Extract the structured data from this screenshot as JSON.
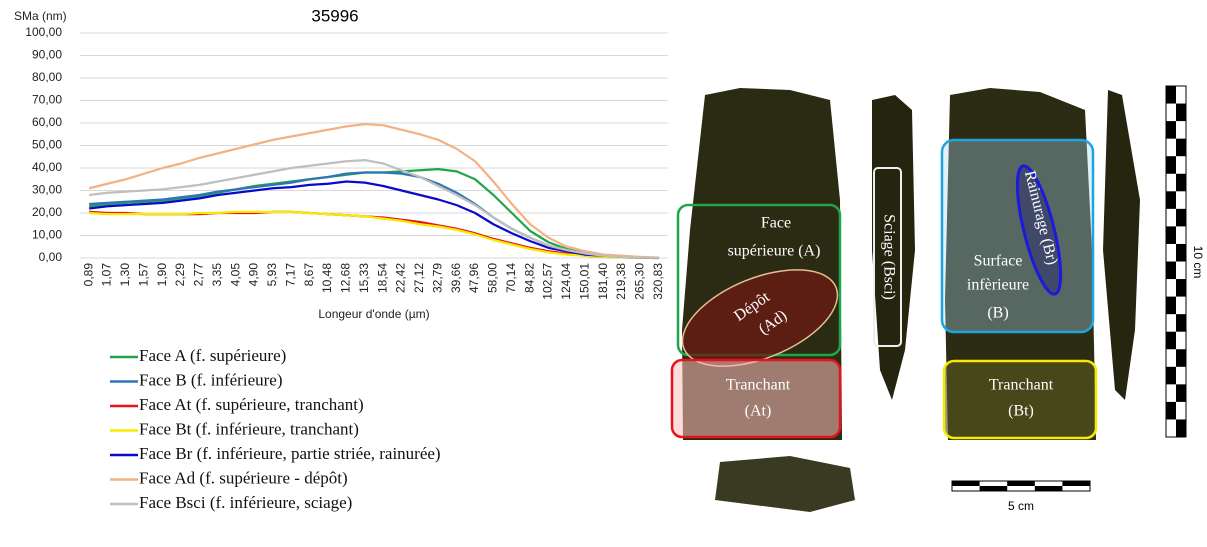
{
  "chart_data": {
    "type": "line",
    "title": "35996",
    "y_label": "SMa (nm)",
    "x_label": "Longeur d'onde (µm)",
    "categories": [
      "0,89",
      "1,07",
      "1,30",
      "1,57",
      "1,90",
      "2,29",
      "2,77",
      "3,35",
      "4,05",
      "4,90",
      "5,93",
      "7,17",
      "8,67",
      "10,48",
      "12,68",
      "15,33",
      "18,54",
      "22,42",
      "27,12",
      "32,79",
      "39,66",
      "47,96",
      "58,00",
      "70,14",
      "84,82",
      "102,57",
      "124,04",
      "150,01",
      "181,40",
      "219,38",
      "265,30",
      "320,83"
    ],
    "ylim": [
      0,
      100
    ],
    "yticks": [
      {
        "value": 0,
        "label": "0,00"
      },
      {
        "value": 10,
        "label": "10,00"
      },
      {
        "value": 20,
        "label": "20,00"
      },
      {
        "value": 30,
        "label": "30,00"
      },
      {
        "value": 40,
        "label": "40,00"
      },
      {
        "value": 50,
        "label": "50,00"
      },
      {
        "value": 60,
        "label": "60,00"
      },
      {
        "value": 70,
        "label": "70,00"
      },
      {
        "value": 80,
        "label": "80,00"
      },
      {
        "value": 90,
        "label": "90,00"
      },
      {
        "value": 100,
        "label": "100,00"
      }
    ],
    "grid": true,
    "series": [
      {
        "name": "Face A (f. supérieure)",
        "color": "#1fa64a",
        "values": [
          23,
          24,
          24.5,
          25,
          25.5,
          26.5,
          27.5,
          29,
          30.5,
          32,
          33,
          34,
          35,
          36,
          37,
          38,
          38,
          38.5,
          39,
          39.5,
          38.5,
          35,
          28,
          20,
          12,
          7,
          4,
          2,
          1,
          0.5,
          0.2,
          0.1
        ]
      },
      {
        "name": "Face B (f. inférieure)",
        "color": "#2e75b6",
        "values": [
          24,
          24.5,
          25,
          25.5,
          26,
          27,
          28,
          29.5,
          30.5,
          31.5,
          32.5,
          33.5,
          35,
          36,
          37.5,
          38,
          38,
          37.5,
          36,
          33,
          29,
          24,
          18,
          13,
          9,
          5.5,
          3.5,
          2,
          1,
          0.5,
          0.2,
          0.1
        ]
      },
      {
        "name": "Face At (f. supérieure, tranchant)",
        "color": "#e8141c",
        "values": [
          20.5,
          20,
          20,
          19.5,
          19.5,
          19.5,
          19.5,
          20,
          20,
          20,
          20.5,
          20.5,
          20,
          19.5,
          19,
          18.5,
          18,
          17,
          16,
          14.5,
          13,
          11,
          8.5,
          6.5,
          4.5,
          3,
          2,
          1,
          0.5,
          0.3,
          0.1,
          0
        ]
      },
      {
        "name": "Face Bt (f. inférieure, tranchant)",
        "color": "#f5ea00",
        "values": [
          20,
          19.5,
          19.5,
          19.5,
          19.5,
          19.5,
          20,
          20,
          20.5,
          20.5,
          20.5,
          20.5,
          20,
          19.5,
          19,
          18.5,
          17.5,
          16.5,
          15,
          14,
          12.5,
          10.5,
          8,
          6,
          4,
          2.5,
          1.5,
          1,
          0.5,
          0.2,
          0.1,
          0
        ]
      },
      {
        "name": "Face Br (f. inférieure, partie striée, rainurée)",
        "color": "#0a0acb",
        "values": [
          22,
          23,
          23.5,
          24,
          24.5,
          25.5,
          26.5,
          28,
          29,
          30,
          31,
          31.5,
          32.5,
          33,
          34,
          33.5,
          32,
          30,
          28,
          26,
          23.5,
          20,
          15,
          11,
          7.5,
          4.5,
          3,
          1.5,
          1,
          0.5,
          0.2,
          0.1
        ]
      },
      {
        "name": "Face Ad (f. supérieure - dépôt)",
        "color": "#f4b183",
        "values": [
          31,
          33,
          35,
          37.5,
          40,
          42,
          44.5,
          46.5,
          48.5,
          50.5,
          52.5,
          54,
          55.5,
          57,
          58.5,
          59.5,
          59,
          57,
          55,
          52.5,
          48.5,
          43,
          34,
          24,
          15,
          9,
          5,
          3,
          1.5,
          1,
          0.5,
          0.2
        ]
      },
      {
        "name": "Face Bsci (f. inférieure, sciage)",
        "color": "#bfbfbf",
        "values": [
          28,
          29,
          29.5,
          30,
          30.5,
          31.5,
          32.5,
          34,
          35.5,
          37,
          38.5,
          40,
          41,
          42,
          43,
          43.5,
          42,
          39,
          36,
          32,
          28,
          23.5,
          18,
          13,
          9,
          5.5,
          3.5,
          2,
          1,
          0.5,
          0.2,
          0.1
        ]
      }
    ]
  },
  "photo": {
    "face_a": [
      "Face",
      "supérieure (A)"
    ],
    "depot": [
      "Dépôt",
      "(Ad)"
    ],
    "tranchant_at": [
      "Tranchant",
      "(At)"
    ],
    "sciage": "Sciage (Bsci)",
    "rainurage": "Rainurage (Br)",
    "surface_b": [
      "Surface",
      "infèrieure",
      "(B)"
    ],
    "tranchant_bt": [
      "Tranchant",
      "(Bt)"
    ],
    "scale_v": "10 cm",
    "scale_h": "5 cm"
  }
}
